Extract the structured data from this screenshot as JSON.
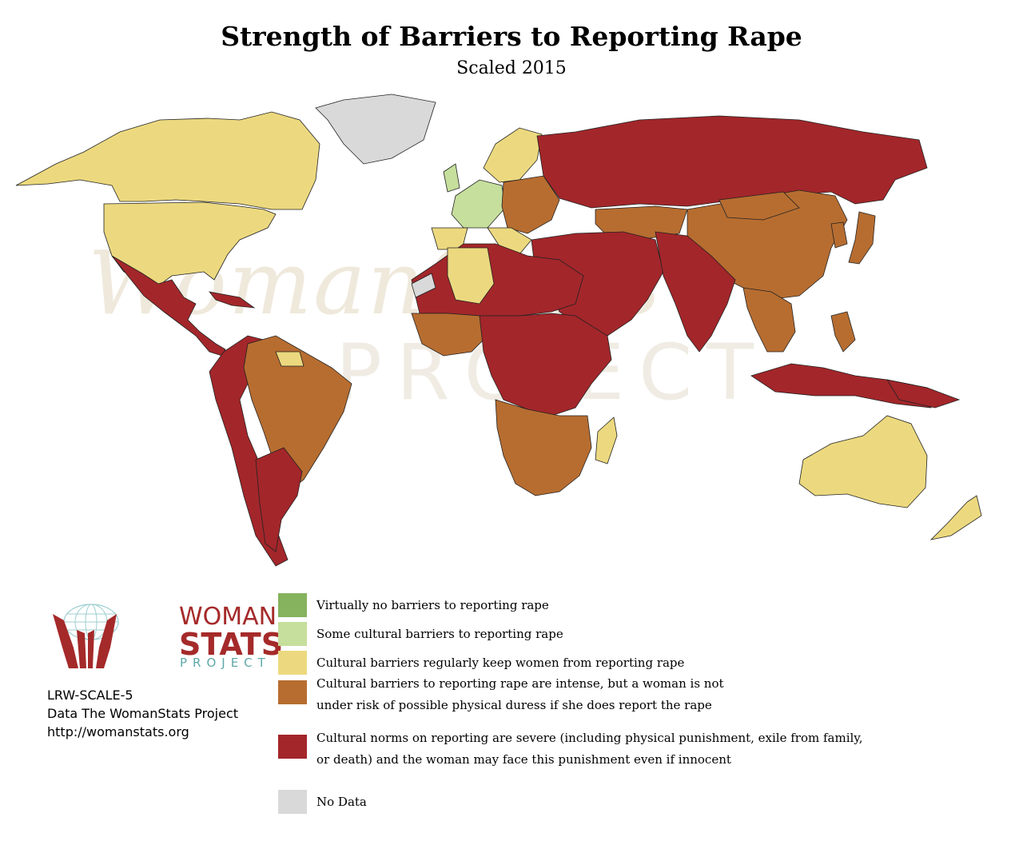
{
  "title": "Strength of Barriers to Reporting Rape",
  "subtitle": "Scaled 2015",
  "watermark": {
    "main": "WomanStats",
    "sub": "PROJECT"
  },
  "map_colors": {
    "none": "#86b35e",
    "some": "#c6df9c",
    "regular": "#ecd97f",
    "intense": "#b76d30",
    "severe": "#a3262a",
    "no_data": "#d9d9d9"
  },
  "legend": [
    {
      "key": "none",
      "text": [
        "Virtually no barriers to reporting rape"
      ]
    },
    {
      "key": "some",
      "text": [
        "Some cultural barriers to reporting rape"
      ]
    },
    {
      "key": "regular",
      "text": [
        "Cultural barriers regularly keep women from reporting rape"
      ]
    },
    {
      "key": "intense",
      "text": [
        "Cultural barriers to reporting rape are intense, but a woman is not",
        "under risk of possible physical duress if she does report the rape"
      ]
    },
    {
      "key": "severe",
      "text": [
        "Cultural norms on reporting are severe (including physical punishment, exile from family,",
        "or death) and the woman may face this punishment even if innocent"
      ]
    },
    {
      "key": "no_data",
      "text": [
        "No Data"
      ]
    }
  ],
  "logo": {
    "line1": "WOMAN",
    "line2": "STATS",
    "line3": "PROJECT",
    "icon": "globe-hands-icon"
  },
  "credits": {
    "code": "LRW-SCALE-5",
    "source": "Data The WomanStats Project",
    "url": "http://womanstats.org"
  }
}
